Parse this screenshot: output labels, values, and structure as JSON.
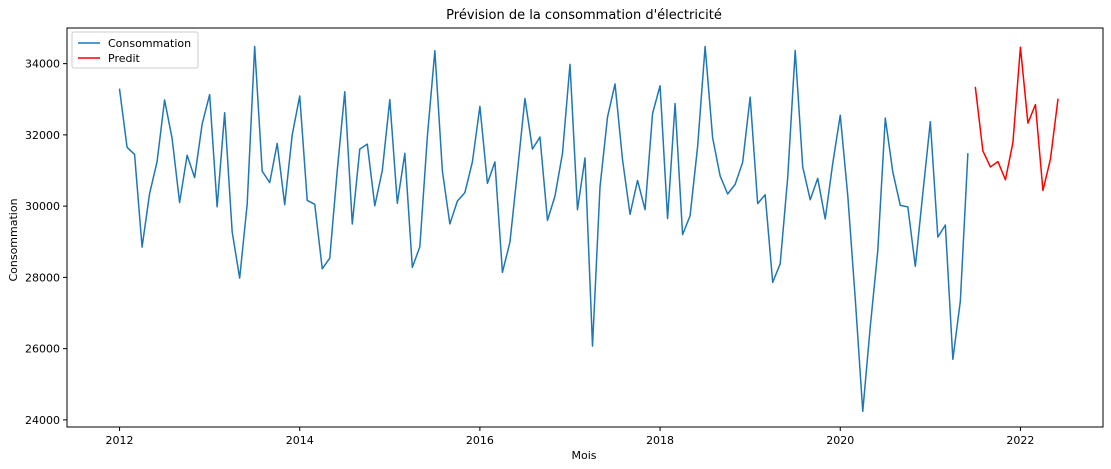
{
  "chart_data": {
    "type": "line",
    "title": "Prévision de la consommation d'électricité",
    "xlabel": "Mois",
    "ylabel": "Consommation",
    "xlim": [
      "2011-06-01",
      "2022-12-01"
    ],
    "ylim": [
      23800,
      35000
    ],
    "x_ticks": [
      "2012-01-01",
      "2014-01-01",
      "2016-01-01",
      "2018-01-01",
      "2020-01-01",
      "2022-01-01"
    ],
    "x_tick_labels": [
      "2012",
      "2014",
      "2016",
      "2018",
      "2020",
      "2022"
    ],
    "y_ticks": [
      24000,
      26000,
      28000,
      30000,
      32000,
      34000
    ],
    "y_tick_labels": [
      "24000",
      "26000",
      "28000",
      "30000",
      "32000",
      "34000"
    ],
    "grid": false,
    "legend_position": "top-left",
    "series": [
      {
        "name": "Consommation",
        "color": "#1f77b4",
        "x_start": "2012-01",
        "frequency": "monthly",
        "values": [
          33280,
          31650,
          31450,
          28850,
          30350,
          31250,
          32980,
          31900,
          30100,
          31430,
          30800,
          32300,
          33130,
          29980,
          32620,
          29280,
          27980,
          30050,
          34480,
          30980,
          30660,
          31760,
          30040,
          32000,
          33090,
          30160,
          30050,
          28240,
          28540,
          31000,
          33210,
          29500,
          31600,
          31740,
          30010,
          31000,
          32990,
          30080,
          31480,
          28280,
          28860,
          31950,
          34360,
          30990,
          29500,
          30140,
          30380,
          31240,
          32800,
          30640,
          31240,
          28140,
          28990,
          30970,
          33020,
          31600,
          31940,
          29600,
          30280,
          31480,
          33980,
          29900,
          31350,
          26070,
          30540,
          32500,
          33430,
          31300,
          29770,
          30720,
          29900,
          32600,
          33380,
          29650,
          32880,
          29200,
          29730,
          31670,
          34480,
          31920,
          30850,
          30340,
          30610,
          31230,
          33060,
          30070,
          30320,
          27860,
          28380,
          30800,
          34370,
          31100,
          30180,
          30780,
          29640,
          31200,
          32550,
          30300,
          27400,
          24240,
          26620,
          28750,
          32470,
          30960,
          30020,
          29980,
          28310,
          30360,
          32370,
          29130,
          29470,
          25700,
          27340,
          31470
        ]
      },
      {
        "name": "Predit",
        "color": "#ff0000",
        "x_start": "2021-07",
        "frequency": "monthly",
        "values": [
          33330,
          31550,
          31100,
          31250,
          30740,
          31780,
          34460,
          32330,
          32850,
          30440,
          31320,
          33000
        ]
      }
    ]
  }
}
